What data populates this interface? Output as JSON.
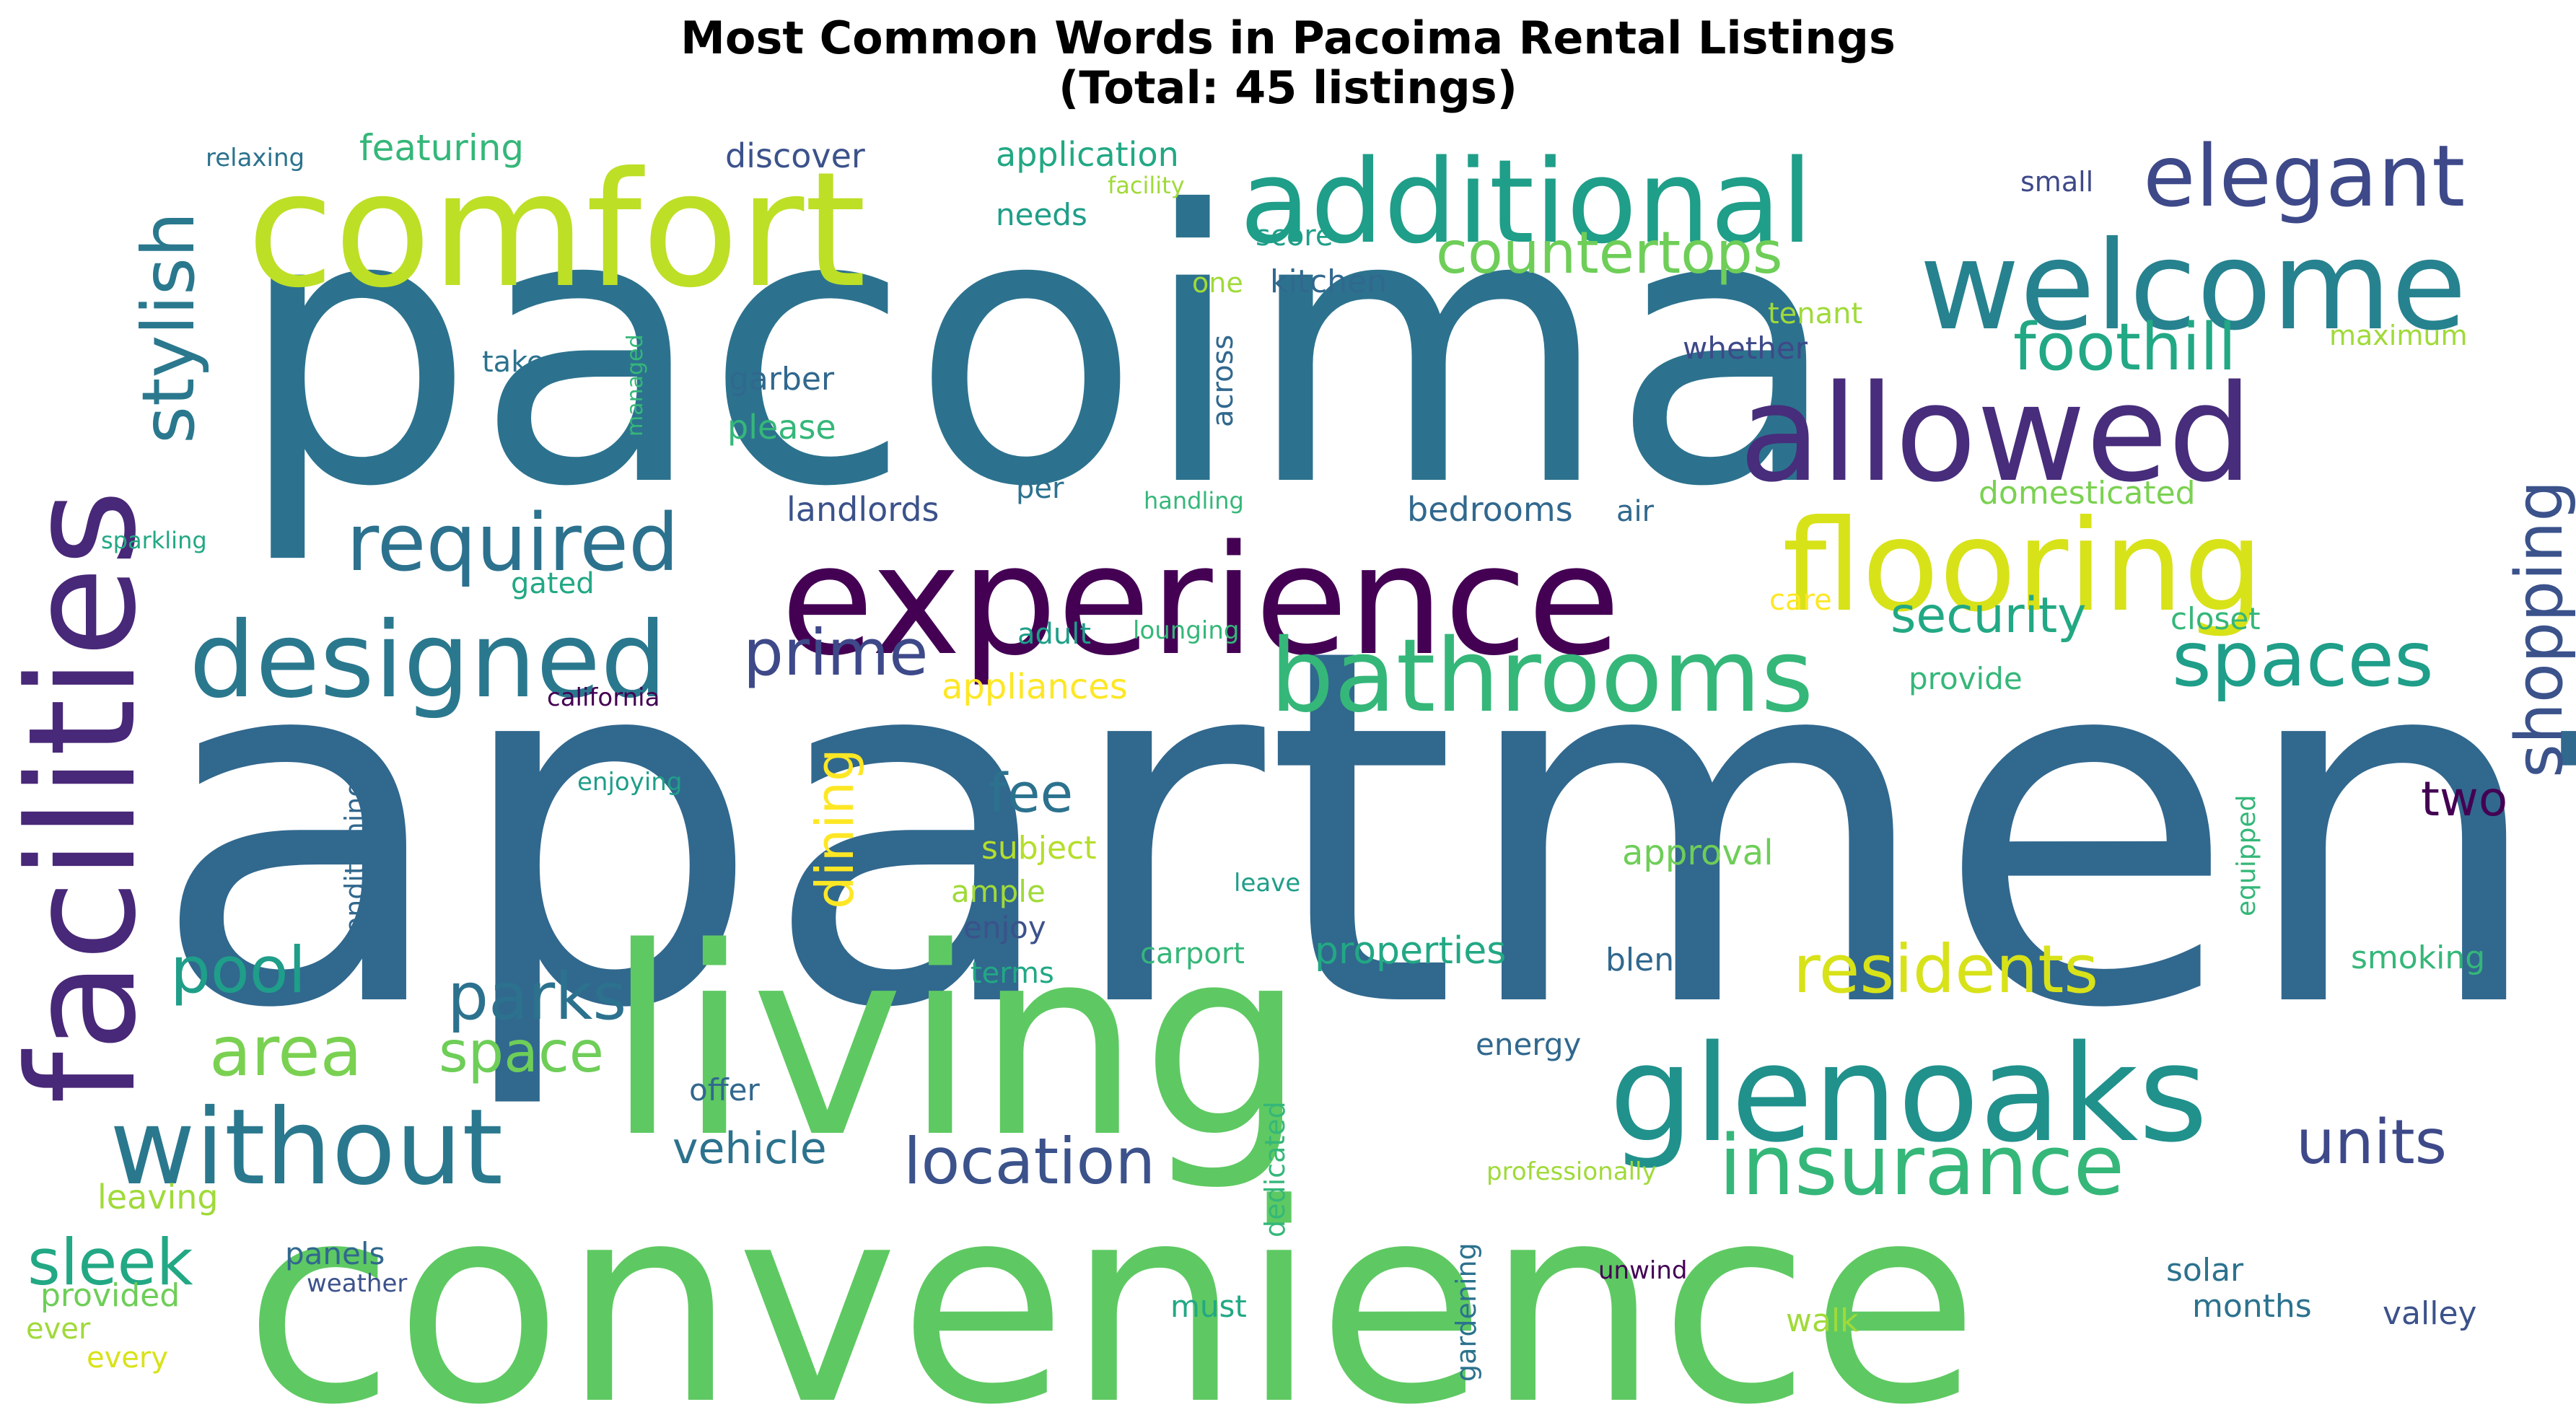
{
  "chart_data": {
    "type": "wordcloud",
    "title": "Most Common Words in Pacoima Rental Listings\n(Total: 45 listings)",
    "colormap": "viridis",
    "background": "#ffffff",
    "words": [
      {
        "text": "apartments",
        "color": "#31688e"
      },
      {
        "text": "pacoima",
        "color": "#2c728e"
      },
      {
        "text": "convenience",
        "color": "#5ec962"
      },
      {
        "text": "living",
        "color": "#5ec962"
      },
      {
        "text": "experience",
        "color": "#440154"
      },
      {
        "text": "comfort",
        "color": "#bddf26"
      },
      {
        "text": "facilities",
        "color": "#482878"
      },
      {
        "text": "glenoaks",
        "color": "#21918c"
      },
      {
        "text": "allowed",
        "color": "#472d7b"
      },
      {
        "text": "welcome",
        "color": "#26828e"
      },
      {
        "text": "additional",
        "color": "#1f9e89"
      },
      {
        "text": "flooring",
        "color": "#d8e219"
      },
      {
        "text": "designed",
        "color": "#2a788e"
      },
      {
        "text": "bathrooms",
        "color": "#35b779"
      },
      {
        "text": "elegant",
        "color": "#3e4989"
      },
      {
        "text": "without",
        "color": "#2a788e"
      },
      {
        "text": "required",
        "color": "#2c728e"
      },
      {
        "text": "insurance",
        "color": "#35b779"
      },
      {
        "text": "residents",
        "color": "#d8e219"
      },
      {
        "text": "spaces",
        "color": "#1f9e89"
      },
      {
        "text": "countertops",
        "color": "#6ece58"
      },
      {
        "text": "stylish",
        "color": "#2a788e"
      },
      {
        "text": "foothill",
        "color": "#22a884"
      },
      {
        "text": "shopping",
        "color": "#3b528b"
      },
      {
        "text": "location",
        "color": "#3b528b"
      },
      {
        "text": "area",
        "color": "#7ad151"
      },
      {
        "text": "parks",
        "color": "#2c728e"
      },
      {
        "text": "prime",
        "color": "#3e4989"
      },
      {
        "text": "pool",
        "color": "#1f9e89"
      },
      {
        "text": "units",
        "color": "#3e4989"
      },
      {
        "text": "dining",
        "color": "#fde725"
      },
      {
        "text": "sleek",
        "color": "#22a884"
      },
      {
        "text": "space",
        "color": "#6ece58"
      },
      {
        "text": "security",
        "color": "#22a884"
      },
      {
        "text": "fee",
        "color": "#2c728e"
      },
      {
        "text": "two",
        "color": "#440154"
      },
      {
        "text": "vehicle",
        "color": "#2c728e"
      },
      {
        "text": "properties",
        "color": "#22a884"
      },
      {
        "text": "featuring",
        "color": "#35b779"
      },
      {
        "text": "discover",
        "color": "#3b528b"
      },
      {
        "text": "application",
        "color": "#22a884"
      },
      {
        "text": "needs",
        "color": "#1f9e89"
      },
      {
        "text": "score",
        "color": "#1f9e89"
      },
      {
        "text": "kitchen",
        "color": "#31688e"
      },
      {
        "text": "small",
        "color": "#3e4989"
      },
      {
        "text": "one",
        "color": "#a0da39"
      },
      {
        "text": "tenant",
        "color": "#a0da39"
      },
      {
        "text": "whether",
        "color": "#3e4989"
      },
      {
        "text": "maximum",
        "color": "#a0da39"
      },
      {
        "text": "take",
        "color": "#2c728e"
      },
      {
        "text": "garber",
        "color": "#31688e"
      },
      {
        "text": "please",
        "color": "#35b779"
      },
      {
        "text": "across",
        "color": "#31688e"
      },
      {
        "text": "landlords",
        "color": "#3b528b"
      },
      {
        "text": "per",
        "color": "#2c728e"
      },
      {
        "text": "bedrooms",
        "color": "#31688e"
      },
      {
        "text": "air",
        "color": "#31688e"
      },
      {
        "text": "domesticated",
        "color": "#7ad151"
      },
      {
        "text": "gated",
        "color": "#22a884"
      },
      {
        "text": "adult",
        "color": "#1f9e89"
      },
      {
        "text": "lounging",
        "color": "#35b779"
      },
      {
        "text": "care",
        "color": "#fde725"
      },
      {
        "text": "closet",
        "color": "#35b779"
      },
      {
        "text": "appliances",
        "color": "#fde725"
      },
      {
        "text": "provide",
        "color": "#35b779"
      },
      {
        "text": "california",
        "color": "#440154"
      },
      {
        "text": "conditioning",
        "color": "#31688e"
      },
      {
        "text": "enjoying",
        "color": "#1f9e89"
      },
      {
        "text": "subject",
        "color": "#b5de2b"
      },
      {
        "text": "approval",
        "color": "#6ece58"
      },
      {
        "text": "ample",
        "color": "#a0da39"
      },
      {
        "text": "leave",
        "color": "#1f9e89"
      },
      {
        "text": "enjoy",
        "color": "#3b528b"
      },
      {
        "text": "equipped",
        "color": "#35b779"
      },
      {
        "text": "carport",
        "color": "#35b779"
      },
      {
        "text": "terms",
        "color": "#22a884"
      },
      {
        "text": "blend",
        "color": "#31688e"
      },
      {
        "text": "smoking",
        "color": "#35b779"
      },
      {
        "text": "energy",
        "color": "#31688e"
      },
      {
        "text": "offer",
        "color": "#31688e"
      },
      {
        "text": "dedicated",
        "color": "#35b779"
      },
      {
        "text": "leaving",
        "color": "#a0da39"
      },
      {
        "text": "professionally",
        "color": "#a0da39"
      },
      {
        "text": "panels",
        "color": "#31688e"
      },
      {
        "text": "weather",
        "color": "#3b528b"
      },
      {
        "text": "gardening",
        "color": "#2c728e"
      },
      {
        "text": "unwind",
        "color": "#440154"
      },
      {
        "text": "solar",
        "color": "#2c728e"
      },
      {
        "text": "provided",
        "color": "#6ece58"
      },
      {
        "text": "must",
        "color": "#22a884"
      },
      {
        "text": "months",
        "color": "#2c728e"
      },
      {
        "text": "valley",
        "color": "#3b528b"
      },
      {
        "text": "ever",
        "color": "#a0da39"
      },
      {
        "text": "walk",
        "color": "#a0da39"
      },
      {
        "text": "every",
        "color": "#d8e219"
      },
      {
        "text": "relaxing",
        "color": "#2c728e"
      },
      {
        "text": "facility",
        "color": "#a0da39"
      },
      {
        "text": "managed",
        "color": "#35b779"
      },
      {
        "text": "sparkling",
        "color": "#22a884"
      },
      {
        "text": "handling",
        "color": "#35b779"
      }
    ]
  }
}
